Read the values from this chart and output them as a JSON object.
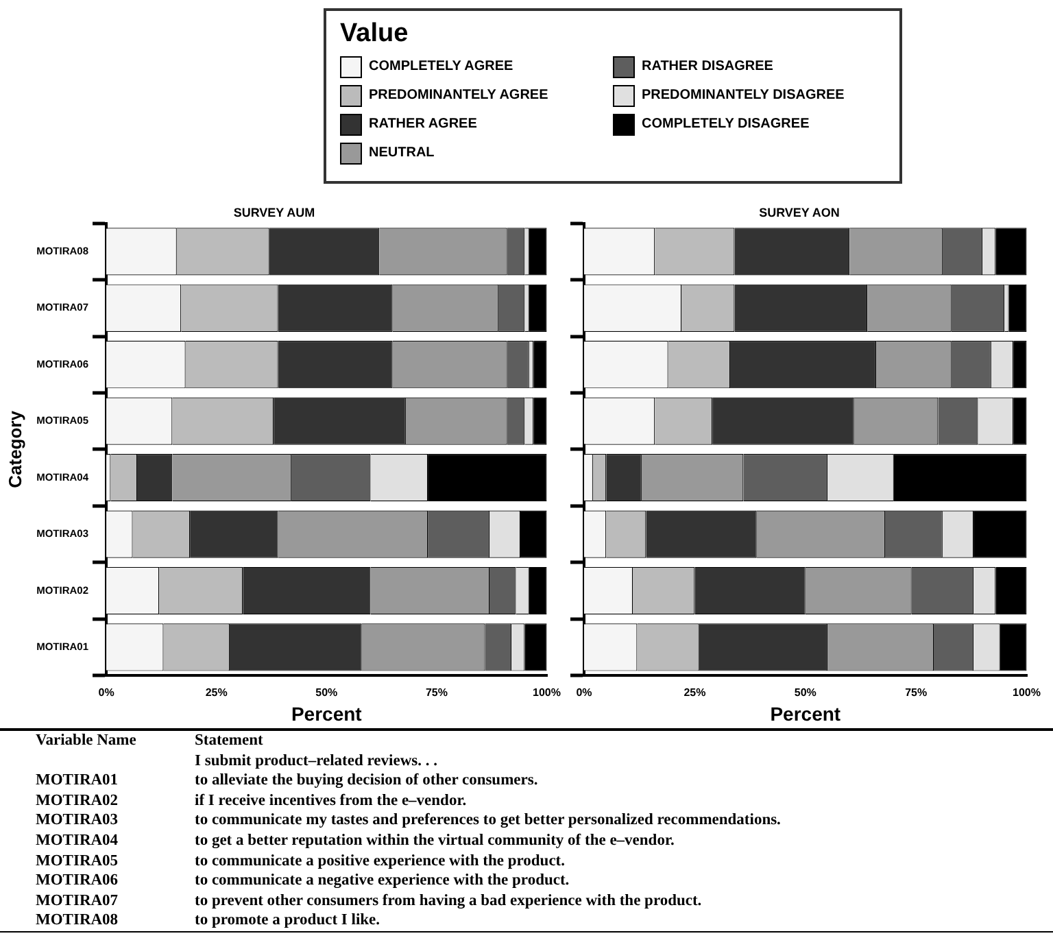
{
  "chart_data": [
    {
      "type": "bar",
      "orientation": "horizontal",
      "stacked": true,
      "title": "SURVEY AUM",
      "xlabel": "Percent",
      "ylabel": "Category",
      "legend": "top",
      "legend_title": "Value",
      "grid": false,
      "categories": [
        "MOTIRA08",
        "MOTIRA07",
        "MOTIRA06",
        "MOTIRA05",
        "MOTIRA04",
        "MOTIRA03",
        "MOTIRA02",
        "MOTIRA01"
      ],
      "xlim": [
        0,
        100
      ],
      "xticks": [
        {
          "value": 0,
          "label": "0%"
        },
        {
          "value": 25,
          "label": "25%"
        },
        {
          "value": 50,
          "label": "50%"
        },
        {
          "value": 75,
          "label": "75%"
        },
        {
          "value": 100,
          "label": "100%"
        }
      ],
      "series": [
        {
          "name": "COMPLETELY AGREE",
          "color": "#f5f5f5",
          "values": [
            16,
            17,
            18,
            15,
            1,
            6,
            12,
            13
          ]
        },
        {
          "name": "PREDOMINANTELY AGREE",
          "color": "#bbbbbb",
          "values": [
            21,
            22,
            21,
            23,
            6,
            13,
            19,
            15
          ]
        },
        {
          "name": "RATHER AGREE",
          "color": "#333333",
          "values": [
            25,
            26,
            26,
            30,
            8,
            20,
            29,
            30
          ]
        },
        {
          "name": "NEUTRAL",
          "color": "#999999",
          "values": [
            29,
            24,
            26,
            23,
            27,
            34,
            27,
            28
          ]
        },
        {
          "name": "RATHER DISAGREE",
          "color": "#5e5e5e",
          "values": [
            4,
            6,
            5,
            4,
            18,
            14,
            6,
            6
          ]
        },
        {
          "name": "PREDOMINANTELY DISAGREE",
          "color": "#e0e0e0",
          "values": [
            1,
            1,
            1,
            2,
            13,
            7,
            3,
            3
          ]
        },
        {
          "name": "COMPLETELY DISAGREE",
          "color": "#000000",
          "values": [
            4,
            4,
            3,
            3,
            27,
            6,
            4,
            5
          ]
        }
      ]
    },
    {
      "type": "bar",
      "orientation": "horizontal",
      "stacked": true,
      "title": "SURVEY AON",
      "xlabel": "Percent",
      "grid": false,
      "tick_labels": "x",
      "categories": [
        null,
        null,
        null,
        null,
        null,
        null,
        null,
        null
      ],
      "xlim": [
        0,
        100
      ],
      "xticks": [
        {
          "value": 0,
          "label": "0%"
        },
        {
          "value": 25,
          "label": "25%"
        },
        {
          "value": 50,
          "label": "50%"
        },
        {
          "value": 75,
          "label": "75%"
        },
        {
          "value": 100,
          "label": "100%"
        }
      ],
      "series": [
        {
          "color": "#f5f5f5",
          "values": [
            16,
            22,
            19,
            16,
            2,
            5,
            11,
            12
          ]
        },
        {
          "color": "#bbbbbb",
          "values": [
            18,
            12,
            14,
            13,
            3,
            9,
            14,
            14
          ]
        },
        {
          "color": "#333333",
          "values": [
            26,
            30,
            33,
            32,
            8,
            25,
            25,
            29
          ]
        },
        {
          "color": "#999999",
          "values": [
            21,
            19,
            17,
            19,
            23,
            29,
            24,
            24
          ]
        },
        {
          "color": "#5e5e5e",
          "values": [
            9,
            12,
            9,
            9,
            19,
            13,
            14,
            9
          ]
        },
        {
          "color": "#e0e0e0",
          "values": [
            3,
            1,
            5,
            8,
            15,
            7,
            5,
            6
          ]
        },
        {
          "color": "#000000",
          "values": [
            7,
            4,
            3,
            3,
            30,
            12,
            7,
            6
          ]
        }
      ]
    },
    {
      "type": "other",
      "annotations": [
        "Variable Name",
        "Statement",
        "I submit product–related reviews. . .",
        "MOTIRA01",
        "to alleviate the buying decision of other consumers.",
        "MOTIRA02",
        "if I receive incentives from the e–vendor.",
        "MOTIRA03",
        "to communicate my tastes and preferences to get better personalized recommendations.",
        "MOTIRA04",
        "to get a better reputation within the virtual community of the e–vendor.",
        "MOTIRA05",
        "to communicate a positive experience with the product.",
        "MOTIRA06",
        "to communicate a negative experience with the product.",
        "MOTIRA07",
        "to prevent other consumers from having a bad experience with the product.",
        "MOTIRA08",
        "to promote a product I like."
      ]
    }
  ]
}
